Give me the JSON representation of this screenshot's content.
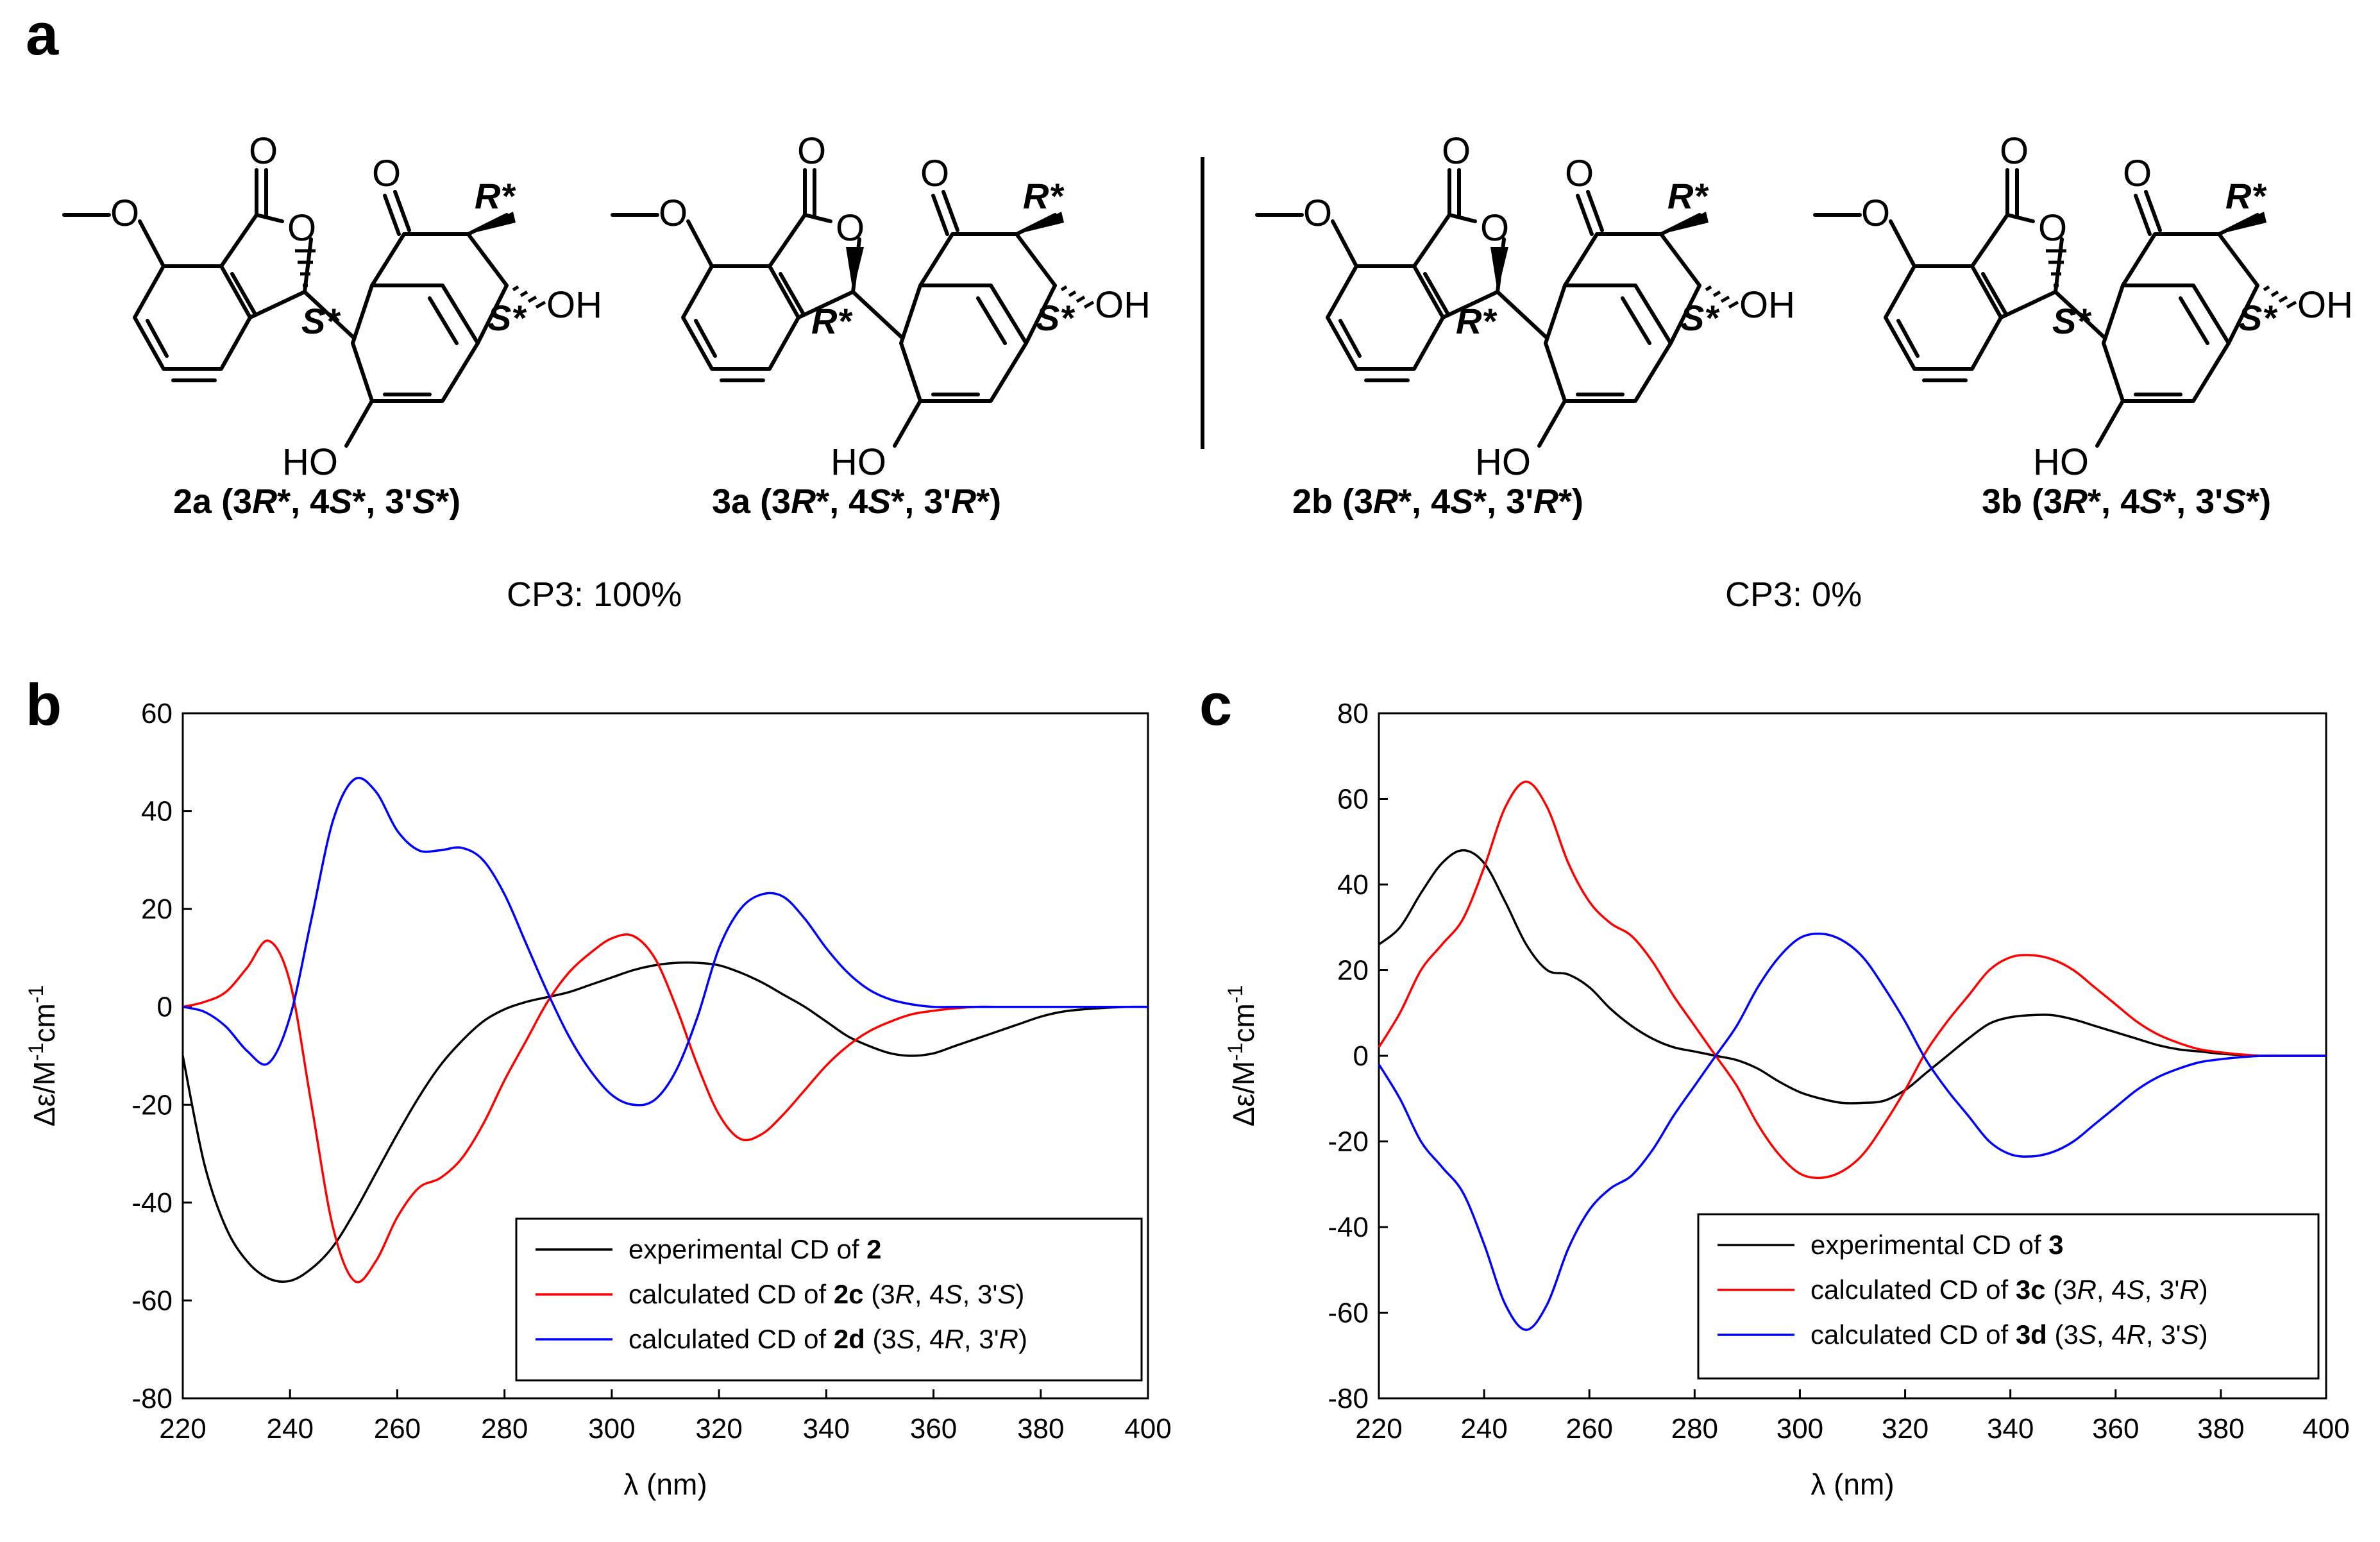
{
  "panel_labels": {
    "a": "a",
    "b": "b",
    "c": "c"
  },
  "scheme": {
    "structures": [
      {
        "id": "2a",
        "config": "3R*, 4S*, 3'S*",
        "c3p_label": "S*",
        "c4_label": "S*",
        "c3_label": "R*",
        "caption": [
          "2a (3",
          "R",
          "*, 4",
          "S",
          "*, 3'",
          "S",
          "*)"
        ]
      },
      {
        "id": "3a",
        "config": "3R*, 4S*, 3'R*",
        "c3p_label": "R*",
        "c4_label": "S*",
        "c3_label": "R*",
        "caption": [
          "3a (3",
          "R",
          "*, 4",
          "S",
          "*, 3'",
          "R",
          "*)"
        ]
      },
      {
        "id": "2b",
        "config": "3R*, 4S*, 3'R*",
        "c3p_label": "R*",
        "c4_label": "S*",
        "c3_label": "R*",
        "caption": [
          "2b (3",
          "R",
          "*, 4",
          "S",
          "*, 3'",
          "R",
          "*)"
        ]
      },
      {
        "id": "3b",
        "config": "3R*, 4S*, 3'S*",
        "c3p_label": "S*",
        "c4_label": "S*",
        "c3_label": "R*",
        "caption": [
          "3b (3",
          "R",
          "*, 4",
          "S",
          "*, 3'",
          "S",
          "*)"
        ]
      }
    ],
    "atom_labels": {
      "oxygen": "O",
      "hydroxyl_right": "OH",
      "hydroxyl_left": "HO"
    },
    "cp3_left": "CP3: 100%",
    "cp3_right": "CP3: 0%"
  },
  "colors": {
    "experimental": "#000000",
    "calc_c": "#ff0000",
    "calc_d": "#0000ff",
    "axis": "#000000"
  },
  "chart_data": [
    {
      "panel": "b",
      "type": "line",
      "xlabel": "λ (nm)",
      "ylabel_parts": [
        "Δε/M",
        "-1",
        "cm",
        "-1"
      ],
      "xlim": [
        220,
        400
      ],
      "ylim": [
        -80,
        60
      ],
      "xticks": [
        220,
        240,
        260,
        280,
        300,
        320,
        340,
        360,
        380,
        400
      ],
      "yticks": [
        -80,
        -60,
        -40,
        -20,
        0,
        20,
        40,
        60
      ],
      "legend_position": "bottom-right",
      "x": [
        220,
        224,
        228,
        232,
        236,
        240,
        244,
        248,
        252,
        256,
        260,
        264,
        268,
        272,
        276,
        280,
        284,
        288,
        292,
        296,
        300,
        304,
        308,
        312,
        316,
        320,
        324,
        328,
        332,
        336,
        340,
        344,
        348,
        352,
        356,
        360,
        364,
        368,
        372,
        376,
        380,
        384,
        388,
        392,
        396,
        400
      ],
      "series": [
        {
          "name": "experimental CD of 2",
          "legend": [
            "experimental CD of ",
            "2",
            "",
            "",
            "",
            "",
            "",
            ""
          ],
          "color": "#000000",
          "values": [
            -10,
            -32,
            -45,
            -52,
            -55.5,
            -56,
            -53.5,
            -49,
            -42,
            -34,
            -26,
            -18.5,
            -12,
            -7,
            -3,
            -0.5,
            1,
            2,
            3,
            4.5,
            6,
            7.5,
            8.5,
            9,
            9,
            8.5,
            7,
            5,
            2.5,
            0,
            -3,
            -6,
            -8,
            -9.5,
            -10,
            -9.5,
            -8,
            -6.5,
            -5,
            -3.5,
            -2,
            -1,
            -0.5,
            -0.2,
            0,
            0
          ]
        },
        {
          "name": "calculated CD of 2c (3R, 4S, 3'S)",
          "legend": [
            "calculated CD of ",
            "2c",
            " (3",
            "R",
            ", 4",
            "S",
            ", 3'",
            "S",
            ")"
          ],
          "color": "#ff0000",
          "values": [
            0,
            1,
            3,
            8,
            13.5,
            5,
            -20,
            -45,
            -56,
            -52,
            -43,
            -37,
            -35,
            -31,
            -24,
            -15,
            -7,
            1,
            7,
            11,
            14,
            14.5,
            10,
            0,
            -12,
            -22,
            -27,
            -26,
            -22,
            -17,
            -12,
            -8,
            -5,
            -3,
            -1.5,
            -0.8,
            -0.3,
            0,
            0,
            0,
            0,
            0,
            0,
            0,
            0,
            0
          ]
        },
        {
          "name": "calculated CD of 2d (3S, 4R, 3'R)",
          "legend": [
            "calculated CD of ",
            "2d",
            " (3",
            "S",
            ", 4",
            "R",
            ", 3'",
            "R",
            ")"
          ],
          "color": "#0000ff",
          "values": [
            0,
            -1,
            -4,
            -9,
            -11.5,
            -2,
            18,
            38,
            46.5,
            44,
            36,
            32,
            32,
            32.5,
            30,
            23,
            13,
            3,
            -6,
            -13,
            -18,
            -20,
            -19,
            -13,
            -2,
            12,
            20,
            23,
            22.5,
            18,
            12,
            7,
            3.5,
            1.5,
            0.5,
            0,
            0,
            0,
            0,
            0,
            0,
            0,
            0,
            0,
            0,
            0
          ]
        }
      ]
    },
    {
      "panel": "c",
      "type": "line",
      "xlabel": "λ (nm)",
      "ylabel_parts": [
        "Δε/M",
        "-1",
        "cm",
        "-1"
      ],
      "xlim": [
        220,
        400
      ],
      "ylim": [
        -80,
        80
      ],
      "xticks": [
        220,
        240,
        260,
        280,
        300,
        320,
        340,
        360,
        380,
        400
      ],
      "yticks": [
        -80,
        -60,
        -40,
        -20,
        0,
        20,
        40,
        60,
        80
      ],
      "legend_position": "bottom-right",
      "x": [
        220,
        224,
        228,
        232,
        236,
        240,
        244,
        248,
        252,
        256,
        260,
        264,
        268,
        272,
        276,
        280,
        284,
        288,
        292,
        296,
        300,
        304,
        308,
        312,
        316,
        320,
        324,
        328,
        332,
        336,
        340,
        344,
        348,
        352,
        356,
        360,
        364,
        368,
        372,
        376,
        380,
        384,
        388,
        392,
        396,
        400
      ],
      "series": [
        {
          "name": "experimental CD of 3",
          "legend": [
            "experimental CD of ",
            "3",
            "",
            "",
            "",
            "",
            "",
            ""
          ],
          "color": "#000000",
          "values": [
            26,
            30,
            38,
            45,
            48,
            45,
            36,
            26,
            20,
            19,
            16,
            11,
            7,
            4,
            2,
            1,
            0,
            -1,
            -3,
            -6,
            -8.5,
            -10,
            -11,
            -11,
            -10.5,
            -8,
            -4,
            0,
            4,
            7.5,
            9,
            9.5,
            9.5,
            8.5,
            7,
            5.5,
            4,
            2.5,
            1.5,
            1,
            0.5,
            0.2,
            0,
            0,
            0,
            0
          ]
        },
        {
          "name": "calculated CD of 3c (3R, 4S, 3'R)",
          "legend": [
            "calculated CD of ",
            "3c",
            " (3",
            "R",
            ", 4",
            "S",
            ", 3'",
            "R",
            ")"
          ],
          "color": "#ff0000",
          "values": [
            2,
            10,
            20,
            26,
            32,
            44,
            58,
            64,
            58,
            45,
            36,
            31,
            28,
            22,
            14,
            7,
            0,
            -7,
            -16,
            -23,
            -27.5,
            -28.5,
            -27,
            -23,
            -16,
            -8,
            1,
            8,
            14,
            20,
            23,
            23.5,
            22.5,
            20,
            16,
            12,
            8,
            5,
            3,
            1.5,
            0.8,
            0.3,
            0,
            0,
            0,
            0
          ]
        },
        {
          "name": "calculated CD of 3d (3S, 4R, 3'S)",
          "legend": [
            "calculated CD of ",
            "3d",
            " (3",
            "S",
            ", 4",
            "R",
            ", 3'",
            "S",
            ")"
          ],
          "color": "#0000ff",
          "values": [
            -2,
            -10,
            -20,
            -26,
            -32,
            -44,
            -58,
            -64,
            -58,
            -45,
            -36,
            -31,
            -28,
            -22,
            -14,
            -7,
            0,
            7,
            16,
            23,
            27.5,
            28.5,
            27,
            23,
            16,
            8,
            -1,
            -8,
            -14,
            -20,
            -23,
            -23.5,
            -22.5,
            -20,
            -16,
            -12,
            -8,
            -5,
            -3,
            -1.5,
            -0.8,
            -0.3,
            0,
            0,
            0,
            0
          ]
        }
      ]
    }
  ]
}
